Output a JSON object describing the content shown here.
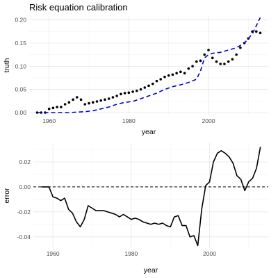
{
  "title": "Risk equation calibration",
  "chart_data": [
    {
      "type": "line",
      "xlabel": "year",
      "ylabel": "truth",
      "xlim": [
        1955,
        2015
      ],
      "ylim": [
        -0.006,
        0.21
      ],
      "xticks": [
        1960,
        1980,
        2000
      ],
      "yticks": [
        0.0,
        0.05,
        0.1,
        0.15,
        0.2
      ],
      "ytick_labels": [
        "0.00",
        "0.05",
        "0.10",
        "0.15",
        "0.20"
      ],
      "grid": true,
      "series": [
        {
          "style": "points",
          "color": "#000000",
          "x": [
            1957,
            1958,
            1959,
            1960,
            1961,
            1962,
            1963,
            1964,
            1965,
            1966,
            1967,
            1968,
            1969,
            1970,
            1971,
            1972,
            1973,
            1974,
            1975,
            1976,
            1977,
            1978,
            1979,
            1980,
            1981,
            1982,
            1983,
            1984,
            1985,
            1986,
            1987,
            1988,
            1989,
            1990,
            1991,
            1992,
            1993,
            1994,
            1995,
            1996,
            1997,
            1998,
            1999,
            2000,
            2001,
            2002,
            2003,
            2004,
            2005,
            2006,
            2007,
            2008,
            2009,
            2010,
            2011,
            2012,
            2013
          ],
          "y": [
            0.0,
            0.0,
            0.0,
            0.008,
            0.01,
            0.012,
            0.012,
            0.018,
            0.022,
            0.028,
            0.033,
            0.028,
            0.018,
            0.02,
            0.022,
            0.024,
            0.026,
            0.028,
            0.03,
            0.033,
            0.036,
            0.04,
            0.042,
            0.043,
            0.045,
            0.047,
            0.05,
            0.054,
            0.058,
            0.062,
            0.068,
            0.072,
            0.077,
            0.08,
            0.082,
            0.085,
            0.088,
            0.085,
            0.095,
            0.1,
            0.11,
            0.112,
            0.125,
            0.135,
            0.118,
            0.11,
            0.105,
            0.105,
            0.11,
            0.115,
            0.125,
            0.14,
            0.15,
            0.16,
            0.175,
            0.175,
            0.172
          ]
        },
        {
          "style": "dashed",
          "color": "#0000cc",
          "x": [
            1957,
            1959,
            1961,
            1963,
            1965,
            1967,
            1969,
            1971,
            1973,
            1975,
            1977,
            1979,
            1981,
            1983,
            1985,
            1987,
            1989,
            1991,
            1993,
            1995,
            1997,
            1998,
            1999,
            2000,
            2001,
            2003,
            2005,
            2007,
            2009,
            2011,
            2013
          ],
          "y": [
            0.0,
            0.0,
            0.0,
            0.0,
            0.0,
            0.001,
            0.002,
            0.004,
            0.008,
            0.012,
            0.018,
            0.022,
            0.024,
            0.03,
            0.036,
            0.042,
            0.05,
            0.056,
            0.06,
            0.065,
            0.072,
            0.09,
            0.118,
            0.125,
            0.128,
            0.13,
            0.135,
            0.14,
            0.15,
            0.17,
            0.205
          ]
        }
      ]
    },
    {
      "type": "line",
      "xlabel": "year",
      "ylabel": "error",
      "xlim": [
        1955,
        2015
      ],
      "ylim": [
        -0.049,
        0.035
      ],
      "xticks": [
        1960,
        1980,
        2000
      ],
      "yticks": [
        -0.04,
        -0.02,
        0.0,
        0.02
      ],
      "ytick_labels": [
        "-0.04",
        "-0.02",
        "0.00",
        "0.02"
      ],
      "grid": true,
      "reference_line": 0,
      "series": [
        {
          "style": "solid",
          "color": "#000000",
          "x": [
            1957,
            1958,
            1959,
            1960,
            1961,
            1962,
            1963,
            1964,
            1965,
            1966,
            1967,
            1968,
            1969,
            1970,
            1971,
            1972,
            1973,
            1974,
            1975,
            1976,
            1977,
            1978,
            1979,
            1980,
            1981,
            1982,
            1983,
            1984,
            1985,
            1986,
            1987,
            1988,
            1989,
            1990,
            1991,
            1992,
            1993,
            1994,
            1995,
            1996,
            1997,
            1998,
            1999,
            2000,
            2001,
            2002,
            2003,
            2004,
            2005,
            2006,
            2007,
            2008,
            2009,
            2010,
            2011,
            2012,
            2013
          ],
          "y": [
            0.0,
            0.0,
            0.0,
            -0.008,
            -0.009,
            -0.011,
            -0.009,
            -0.018,
            -0.021,
            -0.028,
            -0.032,
            -0.026,
            -0.015,
            -0.017,
            -0.019,
            -0.019,
            -0.019,
            -0.02,
            -0.021,
            -0.022,
            -0.024,
            -0.022,
            -0.024,
            -0.026,
            -0.025,
            -0.026,
            -0.028,
            -0.029,
            -0.03,
            -0.029,
            -0.03,
            -0.029,
            -0.031,
            -0.032,
            -0.024,
            -0.023,
            -0.031,
            -0.031,
            -0.04,
            -0.039,
            -0.047,
            -0.018,
            0.001,
            0.004,
            0.02,
            0.027,
            0.029,
            0.027,
            0.024,
            0.019,
            0.009,
            0.006,
            -0.003,
            0.004,
            0.007,
            0.015,
            0.032
          ]
        }
      ]
    }
  ]
}
